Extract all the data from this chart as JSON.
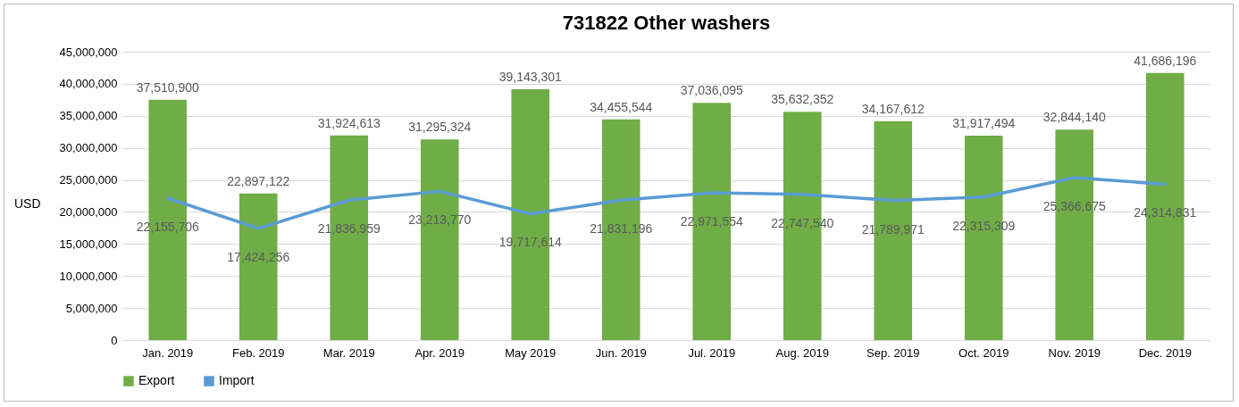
{
  "chart_data": {
    "type": "bar",
    "title": "731822 Other washers",
    "ylabel": "USD",
    "categories": [
      "Jan. 2019",
      "Feb. 2019",
      "Mar. 2019",
      "Apr. 2019",
      "May 2019",
      "Jun. 2019",
      "Jul. 2019",
      "Aug. 2019",
      "Sep. 2019",
      "Oct. 2019",
      "Nov. 2019",
      "Dec. 2019"
    ],
    "series": [
      {
        "name": "Export",
        "color": "#70ad47",
        "values": [
          37510900,
          22897122,
          31924613,
          31295324,
          39143301,
          34455544,
          37036095,
          35632352,
          34167612,
          31917494,
          32844140,
          41686196
        ],
        "value_labels": [
          "37,510,900",
          "22,897,122",
          "31,924,613",
          "31,295,324",
          "39,143,301",
          "34,455,544",
          "37,036,095",
          "35,632,352",
          "34,167,612",
          "31,917,494",
          "32,844,140",
          "41,686,196"
        ]
      },
      {
        "name": "Import",
        "type": "line",
        "color": "#5b9bd5",
        "values": [
          22155706,
          17424256,
          21836959,
          23213770,
          19717614,
          21831196,
          22971554,
          22747540,
          21789971,
          22315309,
          25366675,
          24314831
        ],
        "value_labels": [
          "22,155,706",
          "17,424,256",
          "21,836,959",
          "23,213,770",
          "19,717,614",
          "21,831,196",
          "22,971,554",
          "22,747,540",
          "21,789,971",
          "22,315,309",
          "25,366,675",
          "24,314,831"
        ]
      }
    ],
    "ylim": [
      0,
      45000000
    ],
    "yticks": [
      0,
      {
        "value": 5000000,
        "label": "5,000,000"
      },
      {
        "value": 10000000,
        "label": "10,000,000"
      },
      {
        "value": 15000000,
        "label": "15,000,000"
      },
      {
        "value": 20000000,
        "label": "20,000,000"
      },
      {
        "value": 25000000,
        "label": "25,000,000"
      },
      {
        "value": 30000000,
        "label": "30,000,000"
      },
      {
        "value": 35000000,
        "label": "35,000,000"
      },
      {
        "value": 40000000,
        "label": "40,000,000"
      },
      {
        "value": 45000000,
        "label": "45,000,000"
      }
    ],
    "grid": "y",
    "legend": "bottom"
  }
}
